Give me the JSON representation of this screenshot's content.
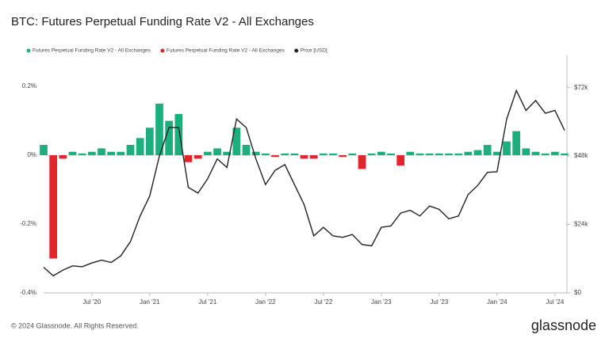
{
  "chart_data": {
    "type": "combo",
    "title": "BTC: Futures Perpetual Funding Rate V2 - All Exchanges",
    "x": [
      "2020-02",
      "2020-03",
      "2020-04",
      "2020-05",
      "2020-06",
      "2020-07",
      "2020-08",
      "2020-09",
      "2020-10",
      "2020-11",
      "2020-12",
      "2021-01",
      "2021-02",
      "2021-03",
      "2021-04",
      "2021-05",
      "2021-06",
      "2021-07",
      "2021-08",
      "2021-09",
      "2021-10",
      "2021-11",
      "2021-12",
      "2022-01",
      "2022-02",
      "2022-03",
      "2022-04",
      "2022-05",
      "2022-06",
      "2022-07",
      "2022-08",
      "2022-09",
      "2022-10",
      "2022-11",
      "2022-12",
      "2023-01",
      "2023-02",
      "2023-03",
      "2023-04",
      "2023-05",
      "2023-06",
      "2023-07",
      "2023-08",
      "2023-09",
      "2023-10",
      "2023-11",
      "2023-12",
      "2024-01",
      "2024-02",
      "2024-03",
      "2024-04",
      "2024-05",
      "2024-06",
      "2024-07",
      "2024-08"
    ],
    "xlim": [
      "2020-02",
      "2024-08"
    ],
    "xticks": [
      {
        "value": "2020-07",
        "label": "Jul '20"
      },
      {
        "value": "2021-01",
        "label": "Jan '21"
      },
      {
        "value": "2021-07",
        "label": "Jul '21"
      },
      {
        "value": "2022-01",
        "label": "Jan '22"
      },
      {
        "value": "2022-07",
        "label": "Jul '22"
      },
      {
        "value": "2023-01",
        "label": "Jan '23"
      },
      {
        "value": "2023-07",
        "label": "Jul '23"
      },
      {
        "value": "2024-01",
        "label": "Jan '24"
      },
      {
        "value": "2024-07",
        "label": "Jul '24"
      }
    ],
    "ylim": [
      -0.4,
      0.29
    ],
    "yticks": [
      {
        "value": -0.4,
        "label": "-0.4%"
      },
      {
        "value": -0.2,
        "label": "-0.2%"
      },
      {
        "value": 0,
        "label": "0%"
      },
      {
        "value": 0.2,
        "label": "0.2%"
      }
    ],
    "y2lim": [
      0,
      83300
    ],
    "y2ticks": [
      {
        "value": 0,
        "label": "$0"
      },
      {
        "value": 24000,
        "label": "$24k"
      },
      {
        "value": 48000,
        "label": "$48k"
      },
      {
        "value": 72000,
        "label": "$72k"
      }
    ],
    "grid": false,
    "series": [
      {
        "name": "Futures Perpetual Funding Rate V2 - All Exchanges",
        "type": "bar",
        "color": "#1cae7c",
        "values": [
          0.03,
          null,
          null,
          0.01,
          0.005,
          0.01,
          0.02,
          0.01,
          0.01,
          0.03,
          0.05,
          0.08,
          0.15,
          0.1,
          0.12,
          null,
          null,
          0.01,
          0.02,
          0.01,
          0.08,
          0.03,
          0.01,
          0.005,
          null,
          0.005,
          0.005,
          null,
          null,
          0.005,
          0.005,
          null,
          0.005,
          null,
          0.005,
          0.01,
          0.005,
          null,
          0.01,
          0.005,
          0.005,
          0.005,
          0.005,
          0.005,
          0.01,
          0.015,
          0.03,
          0.01,
          0.04,
          0.07,
          0.02,
          0.01,
          0.005,
          0.01,
          0.005
        ]
      },
      {
        "name": "Futures Perpetual Funding Rate V2 - All Exchanges",
        "type": "bar",
        "color": "#e3242b",
        "values": [
          null,
          -0.3,
          -0.01,
          null,
          null,
          null,
          null,
          null,
          null,
          null,
          null,
          null,
          null,
          null,
          null,
          -0.02,
          -0.01,
          null,
          null,
          null,
          null,
          null,
          null,
          null,
          -0.005,
          null,
          null,
          -0.01,
          -0.01,
          null,
          null,
          -0.005,
          null,
          -0.04,
          null,
          null,
          null,
          -0.03,
          null,
          null,
          null,
          null,
          null,
          null,
          null,
          null,
          null,
          null,
          null,
          null,
          null,
          null,
          null,
          null,
          null
        ]
      },
      {
        "name": "Price [USD]",
        "type": "line",
        "axis": "y2",
        "color": "#222222",
        "values": [
          9000,
          6000,
          8000,
          9500,
          9200,
          10500,
          11500,
          10700,
          13000,
          18000,
          27000,
          34000,
          48000,
          58000,
          58000,
          37000,
          35000,
          40000,
          47000,
          44000,
          61000,
          58000,
          47000,
          38000,
          43000,
          45000,
          38000,
          31000,
          20000,
          23000,
          20000,
          19500,
          20500,
          17000,
          16500,
          23000,
          23500,
          28000,
          29000,
          27000,
          30500,
          29300,
          26000,
          27000,
          34500,
          37700,
          42300,
          42500,
          61000,
          71000,
          64000,
          67500,
          63000,
          64000,
          57000
        ]
      }
    ]
  },
  "footer": {
    "copyright": "© 2024 Glassnode. All Rights Reserved.",
    "brand": "glassnode"
  }
}
